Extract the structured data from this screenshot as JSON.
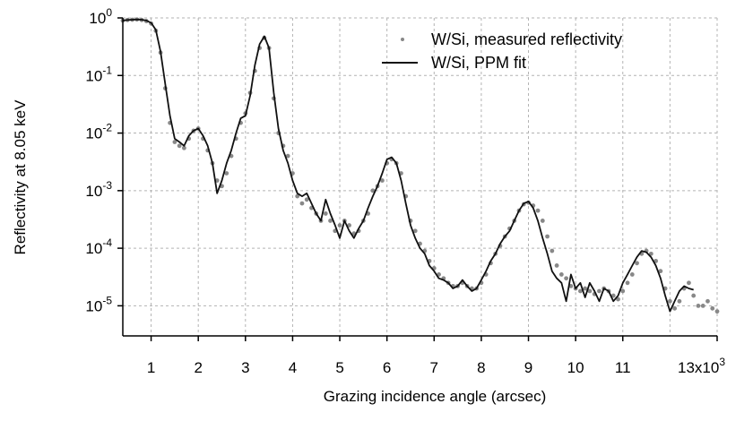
{
  "chart_data": {
    "type": "line",
    "title": "",
    "xlabel": "Grazing incidence angle (arcsec)",
    "ylabel": "Reflectivity at 8.05 keV",
    "x_scale_suffix": "x10",
    "x_scale_exponent": "3",
    "xlim": [
      400,
      13000
    ],
    "ylim": [
      3e-06,
      1
    ],
    "y_scale": "log",
    "x_ticks": [
      1000,
      2000,
      3000,
      4000,
      5000,
      6000,
      7000,
      8000,
      9000,
      10000,
      11000,
      13000
    ],
    "x_tick_labels": [
      "1",
      "2",
      "3",
      "4",
      "5",
      "6",
      "7",
      "8",
      "9",
      "10",
      "11",
      "13"
    ],
    "y_ticks": [
      1e-05,
      0.0001,
      0.001,
      0.01,
      0.1,
      1
    ],
    "y_tick_exponents": [
      "-5",
      "-4",
      "-3",
      "-2",
      "-1",
      "0"
    ],
    "y_tick_base": "10",
    "grid": true,
    "legend_position": "top-right",
    "colors": {
      "measured": "#888888",
      "fit": "#111111",
      "axis": "#000000",
      "grid": "#b3b3b3"
    },
    "series": [
      {
        "name": "W/Si, measured reflectivity",
        "style": "markers",
        "x": [
          400,
          500,
          600,
          700,
          800,
          900,
          1000,
          1100,
          1200,
          1300,
          1400,
          1500,
          1600,
          1700,
          1800,
          1900,
          2000,
          2100,
          2200,
          2300,
          2400,
          2500,
          2600,
          2700,
          2800,
          2900,
          3000,
          3100,
          3200,
          3300,
          3400,
          3500,
          3600,
          3700,
          3800,
          3900,
          4000,
          4100,
          4200,
          4300,
          4400,
          4500,
          4600,
          4700,
          4800,
          4900,
          5000,
          5100,
          5200,
          5300,
          5400,
          5500,
          5600,
          5700,
          5800,
          5900,
          6000,
          6100,
          6200,
          6300,
          6400,
          6500,
          6600,
          6700,
          6800,
          6900,
          7000,
          7100,
          7200,
          7300,
          7400,
          7500,
          7600,
          7700,
          7800,
          7900,
          8000,
          8100,
          8200,
          8300,
          8400,
          8500,
          8600,
          8700,
          8800,
          8900,
          9000,
          9100,
          9200,
          9300,
          9400,
          9500,
          9600,
          9700,
          9800,
          9900,
          10000,
          10100,
          10200,
          10300,
          10400,
          10500,
          10600,
          10700,
          10800,
          10900,
          11000,
          11100,
          11200,
          11300,
          11400,
          11500,
          11600,
          11700,
          11800,
          11900,
          12000,
          12100,
          12200,
          12300,
          12400,
          12500,
          12600,
          12700,
          12800,
          12900,
          13000
        ],
        "y": [
          0.9,
          0.92,
          0.93,
          0.94,
          0.92,
          0.88,
          0.8,
          0.6,
          0.25,
          0.06,
          0.015,
          0.007,
          0.006,
          0.0055,
          0.008,
          0.011,
          0.012,
          0.008,
          0.005,
          0.003,
          0.0015,
          0.0012,
          0.002,
          0.004,
          0.008,
          0.015,
          0.022,
          0.05,
          0.12,
          0.3,
          0.45,
          0.3,
          0.04,
          0.01,
          0.006,
          0.004,
          0.002,
          0.0008,
          0.0006,
          0.0007,
          0.0005,
          0.0004,
          0.0003,
          0.0004,
          0.0003,
          0.0002,
          0.00025,
          0.0003,
          0.00025,
          0.00018,
          0.0002,
          0.0003,
          0.0004,
          0.001,
          0.0012,
          0.0015,
          0.003,
          0.0035,
          0.003,
          0.002,
          0.0008,
          0.0003,
          0.0002,
          0.00012,
          9e-05,
          6e-05,
          4.5e-05,
          3.5e-05,
          3e-05,
          2.5e-05,
          2.2e-05,
          2.2e-05,
          2.5e-05,
          2.2e-05,
          2e-05,
          2e-05,
          2.5e-05,
          3.5e-05,
          5.5e-05,
          8e-05,
          0.00011,
          0.00016,
          0.00022,
          0.0003,
          0.00045,
          0.00058,
          0.00062,
          0.00055,
          0.00045,
          0.0003,
          0.00016,
          9e-05,
          5e-05,
          3.5e-05,
          3e-05,
          2.2e-05,
          2e-05,
          1.8e-05,
          2e-05,
          1.8e-05,
          1.6e-05,
          1.8e-05,
          2e-05,
          1.8e-05,
          1.5e-05,
          1.3e-05,
          1.8e-05,
          2.5e-05,
          3.5e-05,
          5.5e-05,
          8e-05,
          9e-05,
          8e-05,
          6e-05,
          4e-05,
          2e-05,
          1.2e-05,
          9e-06,
          1.2e-05,
          2e-05,
          2.5e-05,
          1.5e-05,
          1e-05,
          1e-05,
          1.2e-05,
          9e-06,
          8e-06
        ]
      },
      {
        "name": "W/Si, PPM fit",
        "style": "line",
        "x": [
          400,
          500,
          600,
          700,
          800,
          900,
          1000,
          1100,
          1200,
          1300,
          1400,
          1500,
          1600,
          1700,
          1800,
          1900,
          2000,
          2100,
          2200,
          2300,
          2400,
          2500,
          2600,
          2700,
          2800,
          2900,
          3000,
          3100,
          3200,
          3300,
          3400,
          3500,
          3600,
          3700,
          3800,
          3900,
          4000,
          4100,
          4200,
          4300,
          4400,
          4500,
          4600,
          4700,
          4800,
          4900,
          5000,
          5100,
          5200,
          5300,
          5400,
          5500,
          5600,
          5700,
          5800,
          5900,
          6000,
          6100,
          6200,
          6300,
          6400,
          6500,
          6600,
          6700,
          6800,
          6900,
          7000,
          7100,
          7200,
          7300,
          7400,
          7500,
          7600,
          7700,
          7800,
          7900,
          8000,
          8100,
          8200,
          8300,
          8400,
          8500,
          8600,
          8700,
          8800,
          8900,
          9000,
          9100,
          9200,
          9300,
          9400,
          9500,
          9600,
          9700,
          9800,
          9900,
          10000,
          10100,
          10200,
          10300,
          10400,
          10500,
          10600,
          10700,
          10800,
          10900,
          11000,
          11100,
          11200,
          11300,
          11400,
          11500,
          11600,
          11700,
          11800,
          11900,
          12000,
          12100,
          12200,
          12300,
          12400,
          12500
        ],
        "y": [
          0.9,
          0.92,
          0.93,
          0.94,
          0.93,
          0.9,
          0.82,
          0.62,
          0.26,
          0.07,
          0.02,
          0.008,
          0.007,
          0.006,
          0.009,
          0.011,
          0.012,
          0.009,
          0.006,
          0.003,
          0.0009,
          0.0015,
          0.003,
          0.005,
          0.01,
          0.018,
          0.02,
          0.045,
          0.15,
          0.35,
          0.48,
          0.3,
          0.05,
          0.012,
          0.005,
          0.003,
          0.0015,
          0.0009,
          0.0008,
          0.0009,
          0.0006,
          0.0004,
          0.0003,
          0.0007,
          0.0004,
          0.00025,
          0.00015,
          0.0003,
          0.0002,
          0.00015,
          0.00022,
          0.0003,
          0.0005,
          0.0008,
          0.0012,
          0.002,
          0.0035,
          0.0038,
          0.003,
          0.0015,
          0.0006,
          0.00025,
          0.00015,
          0.0001,
          8e-05,
          5e-05,
          4e-05,
          3e-05,
          2.8e-05,
          2.5e-05,
          2e-05,
          2.2e-05,
          2.8e-05,
          2.2e-05,
          1.8e-05,
          2e-05,
          2.8e-05,
          4e-05,
          6e-05,
          8e-05,
          0.00012,
          0.00016,
          0.0002,
          0.0003,
          0.00045,
          0.0006,
          0.00065,
          0.0005,
          0.0003,
          0.00015,
          8e-05,
          4e-05,
          3e-05,
          2.5e-05,
          1.2e-05,
          3.5e-05,
          2e-05,
          2.5e-05,
          1.4e-05,
          2.5e-05,
          1.8e-05,
          1.2e-05,
          2e-05,
          1.8e-05,
          1.2e-05,
          1.5e-05,
          2.5e-05,
          3.5e-05,
          5e-05,
          7e-05,
          9e-05,
          8.5e-05,
          7e-05,
          5e-05,
          3e-05,
          1.5e-05,
          8e-06,
          1.2e-05,
          1.8e-05,
          2.2e-05,
          2e-05,
          1.9e-05
        ]
      }
    ]
  }
}
